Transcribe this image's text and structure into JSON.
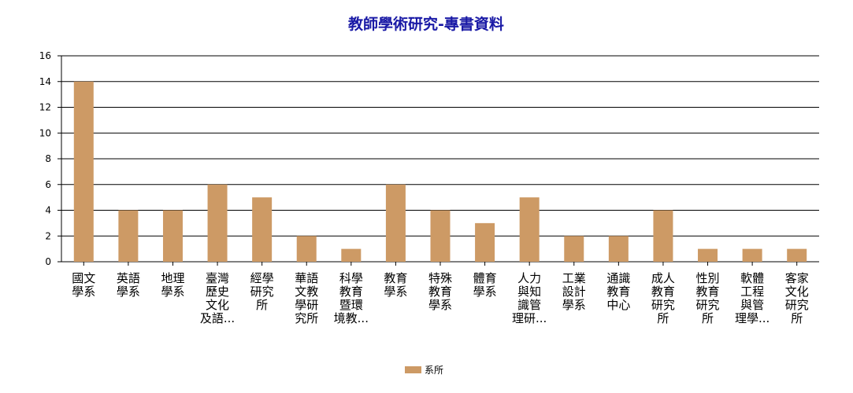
{
  "chart_data": {
    "type": "bar",
    "title": "教師學術研究-專書資料",
    "xlabel": "",
    "ylabel": "",
    "ylim": [
      0,
      16
    ],
    "yticks": [
      0,
      2,
      4,
      6,
      8,
      10,
      12,
      14,
      16
    ],
    "grid": true,
    "legend_position": "bottom",
    "categories": [
      [
        "國文",
        "學系"
      ],
      [
        "英語",
        "學系"
      ],
      [
        "地理",
        "學系"
      ],
      [
        "臺灣",
        "歷史",
        "文化",
        "及語..."
      ],
      [
        "經學",
        "研究",
        "所"
      ],
      [
        "華語",
        "文教",
        "學研",
        "究所"
      ],
      [
        "科學",
        "教育",
        "暨環",
        "境教..."
      ],
      [
        "教育",
        "學系"
      ],
      [
        "特殊",
        "教育",
        "學系"
      ],
      [
        "體育",
        "學系"
      ],
      [
        "人力",
        "與知",
        "識管",
        "理研..."
      ],
      [
        "工業",
        "設計",
        "學系"
      ],
      [
        "通識",
        "教育",
        "中心"
      ],
      [
        "成人",
        "教育",
        "研究",
        "所"
      ],
      [
        "性別",
        "教育",
        "研究",
        "所"
      ],
      [
        "軟體",
        "工程",
        "與管",
        "理學..."
      ],
      [
        "客家",
        "文化",
        "研究",
        "所"
      ]
    ],
    "series": [
      {
        "name": "系所",
        "color": "#cd9a65",
        "values": [
          14,
          4,
          4,
          6,
          5,
          2,
          1,
          6,
          4,
          3,
          5,
          2,
          2,
          4,
          1,
          1,
          1
        ]
      }
    ]
  }
}
